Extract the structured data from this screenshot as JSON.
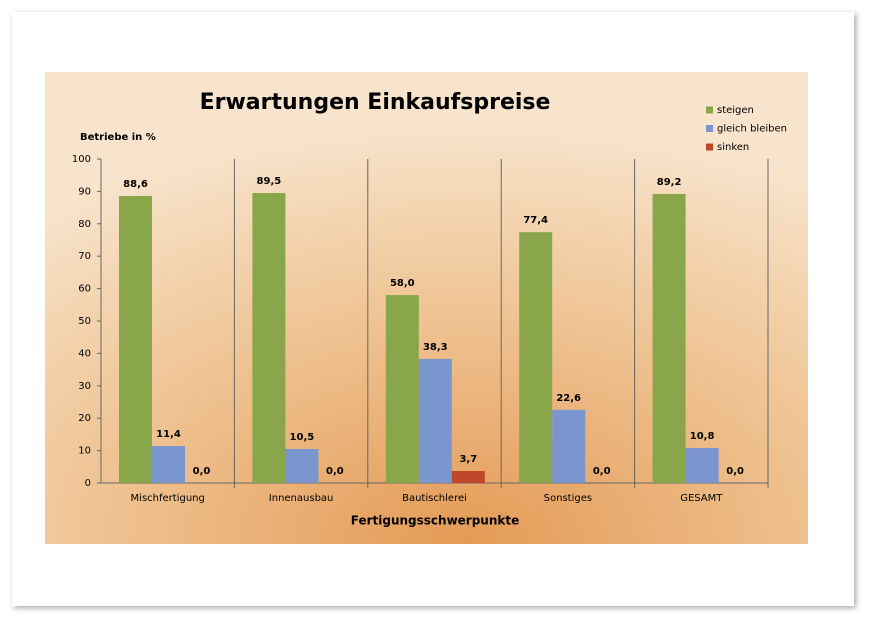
{
  "chart_data": {
    "type": "bar",
    "title": "Erwartungen Einkaufspreise",
    "y_label": "Betriebe in %",
    "x_label": "Fertigungsschwerpunkte",
    "categories": [
      "Mischfertigung",
      "Innenausbau",
      "Bautischlerei",
      "Sonstiges",
      "GESAMT"
    ],
    "series": [
      {
        "name": "steigen",
        "color": "#8aa64a",
        "values": [
          88.6,
          89.5,
          58.0,
          77.4,
          89.2
        ],
        "value_labels": [
          "88,6",
          "89,5",
          "58,0",
          "77,4",
          "89,2"
        ]
      },
      {
        "name": "gleich bleiben",
        "color": "#7b95cf",
        "values": [
          11.4,
          10.5,
          38.3,
          22.6,
          10.8
        ],
        "value_labels": [
          "11,4",
          "10,5",
          "38,3",
          "22,6",
          "10,8"
        ]
      },
      {
        "name": "sinken",
        "color": "#c0462a",
        "values": [
          0.0,
          0.0,
          3.7,
          0.0,
          0.0
        ],
        "value_labels": [
          "0,0",
          "0,0",
          "3,7",
          "0,0",
          "0,0"
        ]
      }
    ],
    "ylim": [
      0,
      100
    ],
    "yticks": [
      0,
      10,
      20,
      30,
      40,
      50,
      60,
      70,
      80,
      90,
      100
    ],
    "legend": "top-right"
  }
}
